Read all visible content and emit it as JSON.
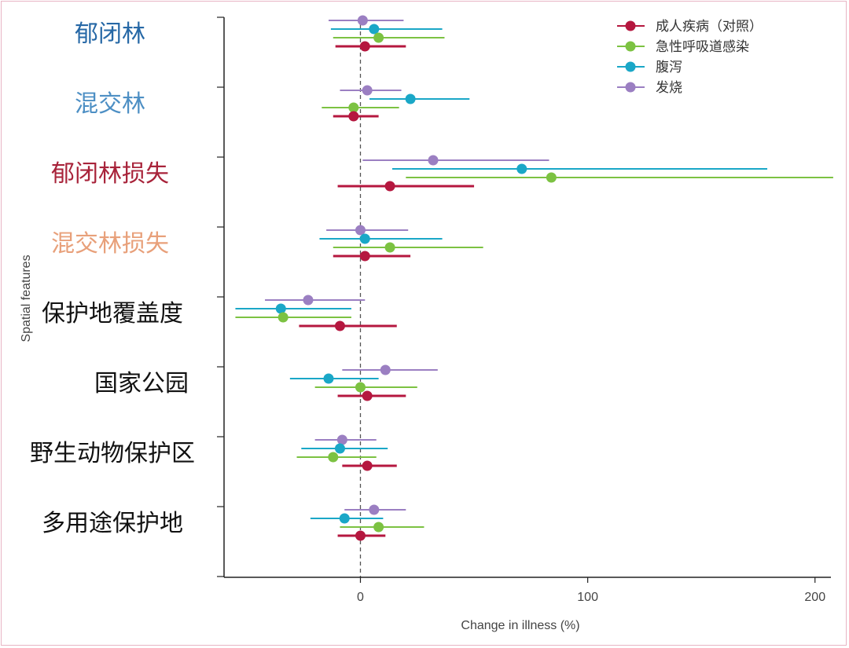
{
  "chart_data": {
    "type": "forest",
    "xlabel": "Change in illness (%)",
    "ylabel": "Spatial features",
    "xlim": [
      -60,
      207
    ],
    "xticks": [
      0,
      100,
      200
    ],
    "reference_line_x": 0,
    "legend_position": "top-right",
    "series": [
      {
        "key": "control",
        "name": "成人疾病（对照）",
        "color": "#b5173f"
      },
      {
        "key": "respiratory",
        "name": "急性呼吸道感染",
        "color": "#7cc242"
      },
      {
        "key": "diarrhea",
        "name": "腹泻",
        "color": "#1aa7c7"
      },
      {
        "key": "fever",
        "name": "发烧",
        "color": "#9b7fc2"
      }
    ],
    "categories": [
      {
        "label": "郁闭林",
        "color": "#2668a6",
        "points": {
          "fever": [
            1,
            -14,
            19
          ],
          "diarrhea": [
            6,
            -13,
            36
          ],
          "respiratory": [
            8,
            -12,
            37
          ],
          "control": [
            2,
            -11,
            20
          ]
        }
      },
      {
        "label": "混交林",
        "color": "#4d8fc4",
        "points": {
          "fever": [
            3,
            -9,
            18
          ],
          "diarrhea": [
            22,
            4,
            48
          ],
          "respiratory": [
            -3,
            -17,
            17
          ],
          "control": [
            -3,
            -12,
            8
          ]
        }
      },
      {
        "label": "郁闭林损失",
        "color": "#a8233a",
        "points": {
          "fever": [
            32,
            1,
            83
          ],
          "diarrhea": [
            71,
            14,
            179
          ],
          "respiratory": [
            84,
            20,
            208
          ],
          "control": [
            13,
            -10,
            50
          ]
        }
      },
      {
        "label": "混交林损失",
        "color": "#e8a07a",
        "points": {
          "fever": [
            0,
            -15,
            21
          ],
          "diarrhea": [
            2,
            -18,
            36
          ],
          "respiratory": [
            13,
            -12,
            54
          ],
          "control": [
            2,
            -12,
            22
          ]
        }
      },
      {
        "label": "保护地覆盖度",
        "color": "#111111",
        "points": {
          "fever": [
            -23,
            -42,
            2
          ],
          "diarrhea": [
            -35,
            -55,
            -4
          ],
          "respiratory": [
            -34,
            -55,
            -4
          ],
          "control": [
            -9,
            -27,
            16
          ]
        }
      },
      {
        "label": "国家公园",
        "color": "#111111",
        "points": {
          "fever": [
            11,
            -8,
            34
          ],
          "diarrhea": [
            -14,
            -31,
            8
          ],
          "respiratory": [
            0,
            -20,
            25
          ],
          "control": [
            3,
            -10,
            20
          ]
        }
      },
      {
        "label": "野生动物保护区",
        "color": "#111111",
        "points": {
          "fever": [
            -8,
            -20,
            7
          ],
          "diarrhea": [
            -9,
            -26,
            12
          ],
          "respiratory": [
            -12,
            -28,
            7
          ],
          "control": [
            3,
            -8,
            16
          ]
        }
      },
      {
        "label": "多用途保护地",
        "color": "#111111",
        "points": {
          "fever": [
            6,
            -7,
            20
          ],
          "diarrhea": [
            -7,
            -22,
            10
          ],
          "respiratory": [
            8,
            -9,
            28
          ],
          "control": [
            0,
            -10,
            11
          ]
        }
      }
    ]
  }
}
